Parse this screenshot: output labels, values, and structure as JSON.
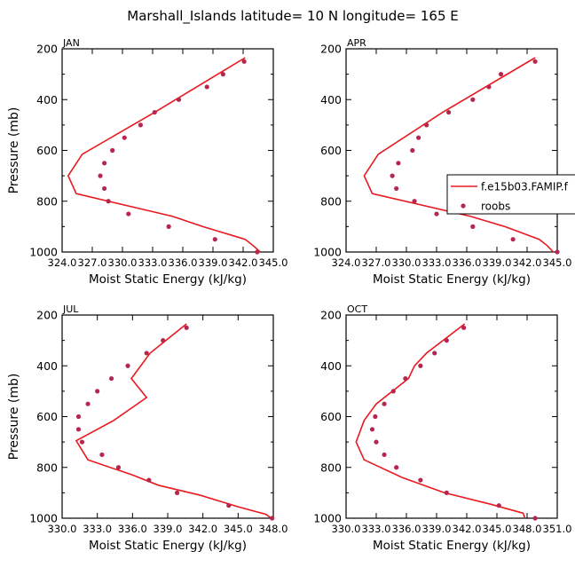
{
  "title": "Marshall_Islands  latitude= 10 N longitude= 165 E",
  "ylabel": "Pressure (mb)",
  "xlabel": "Moist Static Energy (kJ/kg)",
  "colors": {
    "model": "#e8191f",
    "obs": "#b5274e",
    "axis": "#000000"
  },
  "legend": {
    "model": "f.e15b03.FAMIP.f",
    "obs": "roobs",
    "placement": "right of APR panel"
  },
  "chart_data": [
    {
      "type": "line",
      "panel": "JAN",
      "xlim": [
        324.0,
        345.0
      ],
      "ylim": [
        1000,
        200
      ],
      "y_ticks": [
        200,
        400,
        600,
        800,
        1000
      ],
      "x_tick_labels": [
        "324.0",
        "327.0",
        "330.0",
        "333.0",
        "336.0",
        "339.0",
        "342.0",
        "345.0"
      ],
      "series": [
        {
          "name": "f.e15b03.FAMIP.f",
          "points": [
            [
              342.2,
              235
            ],
            [
              333.2,
              450
            ],
            [
              326.0,
              615
            ],
            [
              324.6,
              700
            ],
            [
              325.4,
              770
            ],
            [
              335.0,
              860
            ],
            [
              338.0,
              900
            ],
            [
              342.2,
              950
            ],
            [
              343.0,
              975
            ],
            [
              343.7,
              1000
            ]
          ]
        },
        {
          "name": "roobs",
          "points": [
            [
              342.1,
              250
            ],
            [
              340.0,
              300
            ],
            [
              338.4,
              350
            ],
            [
              335.6,
              400
            ],
            [
              333.2,
              450
            ],
            [
              331.8,
              500
            ],
            [
              330.2,
              550
            ],
            [
              329.0,
              600
            ],
            [
              328.2,
              650
            ],
            [
              327.8,
              700
            ],
            [
              328.2,
              750
            ],
            [
              328.6,
              800
            ],
            [
              330.6,
              850
            ],
            [
              334.6,
              900
            ],
            [
              339.2,
              950
            ],
            [
              343.4,
              1000
            ]
          ]
        }
      ]
    },
    {
      "type": "line",
      "panel": "APR",
      "xlim": [
        324.0,
        345.0
      ],
      "ylim": [
        1000,
        200
      ],
      "y_ticks": [
        200,
        400,
        600,
        800,
        1000
      ],
      "x_tick_labels": [
        "324.0",
        "327.0",
        "330.0",
        "333.0",
        "336.0",
        "339.0",
        "342.0",
        "345.0"
      ],
      "series": [
        {
          "name": "f.e15b03.FAMIP.f",
          "points": [
            [
              342.8,
              235
            ],
            [
              333.6,
              450
            ],
            [
              327.2,
              615
            ],
            [
              325.8,
              700
            ],
            [
              326.6,
              770
            ],
            [
              336.4,
              860
            ],
            [
              339.8,
              900
            ],
            [
              343.2,
              950
            ],
            [
              344.0,
              975
            ],
            [
              344.6,
              1000
            ]
          ]
        },
        {
          "name": "roobs",
          "points": [
            [
              342.8,
              250
            ],
            [
              339.4,
              300
            ],
            [
              338.2,
              350
            ],
            [
              336.6,
              400
            ],
            [
              334.2,
              450
            ],
            [
              332.0,
              500
            ],
            [
              331.2,
              550
            ],
            [
              330.6,
              600
            ],
            [
              329.2,
              650
            ],
            [
              328.6,
              700
            ],
            [
              329.0,
              750
            ],
            [
              330.8,
              800
            ],
            [
              333.0,
              850
            ],
            [
              336.6,
              900
            ],
            [
              340.6,
              950
            ],
            [
              345.0,
              1000
            ]
          ]
        }
      ]
    },
    {
      "type": "line",
      "panel": "JUL",
      "xlim": [
        330.0,
        348.0
      ],
      "ylim": [
        1000,
        200
      ],
      "y_ticks": [
        200,
        400,
        600,
        800,
        1000
      ],
      "x_tick_labels": [
        "330.0",
        "333.0",
        "336.0",
        "339.0",
        "342.0",
        "345.0",
        "348.0"
      ],
      "series": [
        {
          "name": "f.e15b03.FAMIP.f",
          "points": [
            [
              340.6,
              235
            ],
            [
              337.5,
              350
            ],
            [
              335.9,
              450
            ],
            [
              337.2,
              525
            ],
            [
              334.4,
              615
            ],
            [
              331.2,
              695
            ],
            [
              332.2,
              770
            ],
            [
              336.0,
              830
            ],
            [
              338.2,
              870
            ],
            [
              341.8,
              910
            ],
            [
              345.0,
              955
            ],
            [
              347.4,
              985
            ],
            [
              347.8,
              1000
            ]
          ]
        },
        {
          "name": "roobs",
          "points": [
            [
              340.6,
              250
            ],
            [
              338.6,
              300
            ],
            [
              337.2,
              350
            ],
            [
              335.6,
              400
            ],
            [
              334.2,
              450
            ],
            [
              333.0,
              500
            ],
            [
              332.2,
              550
            ],
            [
              331.4,
              600
            ],
            [
              331.4,
              650
            ],
            [
              331.7,
              700
            ],
            [
              333.4,
              750
            ],
            [
              334.8,
              800
            ],
            [
              337.4,
              850
            ],
            [
              339.8,
              900
            ],
            [
              344.2,
              950
            ],
            [
              347.9,
              1000
            ]
          ]
        }
      ]
    },
    {
      "type": "line",
      "panel": "OCT",
      "xlim": [
        330.0,
        351.0
      ],
      "ylim": [
        1000,
        200
      ],
      "y_ticks": [
        200,
        400,
        600,
        800,
        1000
      ],
      "x_tick_labels": [
        "330.0",
        "333.0",
        "336.0",
        "339.0",
        "342.0",
        "345.0",
        "348.0",
        "351.0"
      ],
      "series": [
        {
          "name": "f.e15b03.FAMIP.f",
          "points": [
            [
              341.8,
              235
            ],
            [
              338.0,
              350
            ],
            [
              336.8,
              400
            ],
            [
              336.2,
              450
            ],
            [
              333.0,
              550
            ],
            [
              331.8,
              615
            ],
            [
              331.0,
              700
            ],
            [
              331.8,
              770
            ],
            [
              335.6,
              840
            ],
            [
              339.8,
              900
            ],
            [
              344.4,
              945
            ],
            [
              347.6,
              980
            ],
            [
              347.8,
              1000
            ]
          ]
        },
        {
          "name": "roobs",
          "points": [
            [
              341.7,
              250
            ],
            [
              340.0,
              300
            ],
            [
              338.8,
              350
            ],
            [
              337.4,
              400
            ],
            [
              335.9,
              450
            ],
            [
              334.7,
              500
            ],
            [
              333.8,
              550
            ],
            [
              332.9,
              600
            ],
            [
              332.6,
              650
            ],
            [
              333.0,
              700
            ],
            [
              333.8,
              750
            ],
            [
              335.0,
              800
            ],
            [
              337.4,
              850
            ],
            [
              340.0,
              900
            ],
            [
              345.2,
              950
            ],
            [
              348.8,
              1000
            ]
          ]
        }
      ]
    }
  ]
}
